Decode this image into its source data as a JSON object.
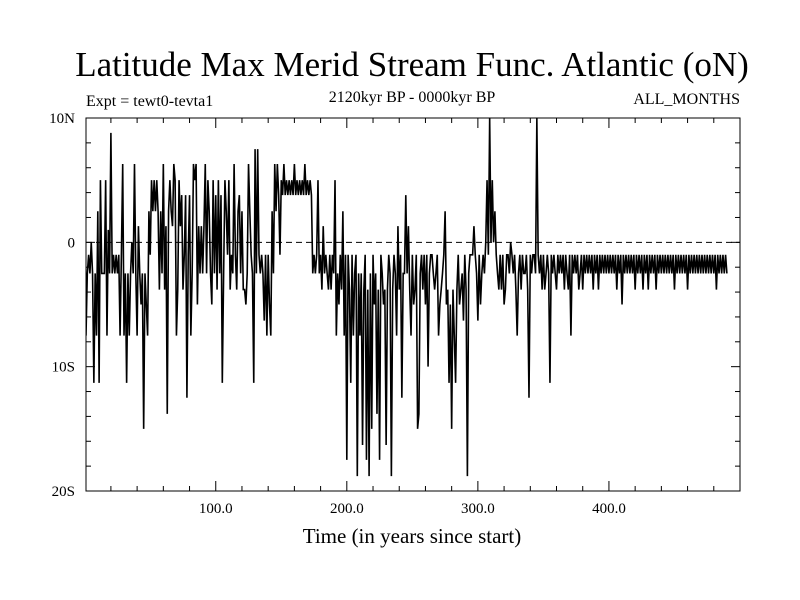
{
  "chart_data": {
    "type": "line",
    "title": "Latitude Max Merid Stream Func. Atlantic (oN)",
    "subtitle": "2120kyr BP - 0000kyr BP",
    "experiment_label": "Expt = tewt0-tevta1",
    "season_label": "ALL_MONTHS",
    "xlabel": "Time (in years since start)",
    "ylabel": "",
    "xlim": [
      1,
      500
    ],
    "ylim": [
      -20,
      10
    ],
    "x_ticks": [
      {
        "value": 100,
        "label": "100.0"
      },
      {
        "value": 200,
        "label": "200.0"
      },
      {
        "value": 300,
        "label": "300.0"
      },
      {
        "value": 400,
        "label": "400.0"
      }
    ],
    "y_ticks": [
      {
        "value": 10,
        "label": "10N"
      },
      {
        "value": 0,
        "label": "0"
      },
      {
        "value": -10,
        "label": "10S"
      },
      {
        "value": -20,
        "label": "20S"
      }
    ],
    "zero_line": true,
    "grid": false,
    "series": [
      {
        "name": "tewt0-tevta1",
        "x_start": 1,
        "x_step": 1,
        "values": [
          -7.5,
          -2.5,
          -1,
          -2.5,
          0,
          -2.5,
          -11.3,
          -2.5,
          -7.5,
          2.5,
          -11.3,
          5,
          -2.5,
          -2.5,
          -2.5,
          5,
          -7.5,
          1,
          -2.5,
          8.8,
          -2.5,
          -1,
          -2.5,
          -1,
          -2.5,
          -1,
          -7.5,
          -1,
          6.3,
          -7.5,
          -2.5,
          -11.3,
          -2.5,
          -7.5,
          -2.5,
          0,
          -2.5,
          6.3,
          -2.5,
          -7.5,
          1.3,
          -2.5,
          -5,
          -2.5,
          -15,
          -2.5,
          -5,
          -7.5,
          2.5,
          -1,
          5,
          2.5,
          5,
          2.5,
          5,
          2.5,
          -3.8,
          2.5,
          -2.5,
          6.3,
          -3.8,
          1.3,
          -13.8,
          2.5,
          5,
          2.5,
          1.3,
          6.3,
          5,
          -7.5,
          -3.8,
          5,
          1.3,
          3.8,
          -3.8,
          -1,
          3.8,
          -12.5,
          -1,
          3.8,
          -7.5,
          -2.5,
          6.3,
          5,
          6.3,
          -5,
          1.3,
          -2.5,
          1.3,
          -2.5,
          1.3,
          6.3,
          -2.5,
          5,
          2.5,
          -2.5,
          -5,
          5,
          -2.5,
          3.8,
          -3.8,
          5,
          -2.5,
          3.8,
          -11.3,
          -2.5,
          5,
          2.5,
          -1,
          5,
          -3.8,
          -1,
          -2.5,
          6.3,
          -1,
          -3.8,
          2.5,
          3.8,
          -2.5,
          2.5,
          -3.8,
          -3.8,
          -5,
          -2.5,
          6.3,
          2.5,
          -1,
          -2.5,
          -11.3,
          7.5,
          -2.5,
          7.5,
          -1,
          -2.5,
          -1,
          -2.5,
          -6.3,
          -1,
          -7.5,
          -1,
          -5,
          -7.5,
          2.5,
          -2.5,
          6.3,
          2.5,
          6.3,
          3.8,
          -1,
          5,
          3.8,
          6.3,
          3.8,
          5,
          3.8,
          5,
          3.8,
          5,
          3.8,
          6.3,
          3.8,
          5,
          3.8,
          5,
          3.8,
          5,
          3.8,
          6.3,
          3.8,
          5,
          3.8,
          5,
          3.8,
          -2.5,
          -1,
          -2.5,
          -1,
          5,
          -2.5,
          -1,
          -3.8,
          1.3,
          -2.5,
          -1,
          -2.5,
          -3.8,
          -1,
          -3.8,
          -1,
          -2.5,
          5,
          -7.5,
          -2.5,
          -5,
          -1,
          -3.8,
          2.5,
          -7.5,
          -1,
          -17.5,
          -1,
          -3.8,
          -11.3,
          -1,
          -7.5,
          -2.5,
          -1,
          -18.8,
          -2.5,
          -7.5,
          -2.5,
          -16.3,
          -3.8,
          -1,
          -17.5,
          -3.8,
          -18.8,
          -2.5,
          -15,
          -1,
          -5,
          -2.5,
          -13.8,
          -3.8,
          -17.5,
          -1,
          -2.5,
          -5,
          -3.8,
          -16.3,
          -3.8,
          -1,
          -2.5,
          -18.8,
          -3.8,
          -1,
          -2.5,
          -7.5,
          1.3,
          -3.8,
          -1,
          -12.5,
          -2.5,
          -2.5,
          3.8,
          -2.5,
          1.3,
          -3.8,
          -7.5,
          -1,
          -5,
          -3.8,
          -1,
          -15,
          -13.8,
          -2.5,
          -1,
          -3.8,
          -1,
          -5,
          -1,
          -10,
          -2.5,
          -1,
          -1,
          -2.5,
          -3.8,
          -2.5,
          -1,
          -7.5,
          -5,
          -3.8,
          -2.5,
          -1,
          2.5,
          -5,
          -3.8,
          -11.3,
          -5,
          -15,
          -3.8,
          -7.5,
          -11.3,
          -3.8,
          -1,
          -5,
          -3.8,
          -2.5,
          -6.3,
          -1,
          -3.8,
          -18.8,
          -2.5,
          -1,
          -1,
          -1,
          1.3,
          -1,
          -2.5,
          -6.3,
          -1,
          -5,
          -2.5,
          -1,
          -2.5,
          0,
          5,
          -1,
          10,
          0,
          5,
          0,
          2.5,
          -1,
          -2.5,
          -3.8,
          -1,
          -3.8,
          -1,
          -5,
          -3.8,
          -1,
          -1,
          -2.5,
          0,
          -1,
          -2.5,
          -1,
          -3.8,
          -7.5,
          -2.5,
          -1,
          -3.8,
          -1,
          -2.5,
          -2.5,
          -1,
          -3.8,
          -12.5,
          -1,
          -2.5,
          -1,
          -1,
          -2.5,
          10,
          -1,
          -2.5,
          -1,
          -3.8,
          -1,
          -3.8,
          -2.5,
          -1,
          -2.5,
          -11.3,
          -1,
          -2.5,
          -1,
          -2.5,
          -3.8,
          -1,
          -2.5,
          -1,
          -2.5,
          -1,
          -3.8,
          -1,
          -2.5,
          -3.8,
          -1,
          -7.5,
          -1,
          -2.5,
          -1,
          -2.5,
          -1,
          -3.8,
          -2.5,
          -1,
          -3.8,
          -1,
          -2.5,
          -1,
          -2.5,
          -1,
          -2.5,
          -1,
          -3.8,
          -1,
          -2.5,
          -1,
          -3.8,
          -1,
          -2.5,
          -1,
          -2.5,
          -1,
          -2.5,
          -1,
          -2.5,
          -1,
          -2.5,
          -1,
          -2.5,
          -1,
          -3.8,
          -1,
          -2.5,
          -1,
          -5,
          -1,
          -2.5,
          -1,
          -2.5,
          -1,
          -2.5,
          -1,
          -2.5,
          -1,
          -3.8,
          -1,
          -2.5,
          -1,
          -2.5,
          -1,
          -3.8,
          -1,
          -2.5,
          -1,
          -3.8,
          -1,
          -2.5,
          -1,
          -2.5,
          -1,
          -3.8,
          -1,
          -2.5,
          -1,
          -2.5,
          -1,
          -2.5,
          -1,
          -2.5,
          -1,
          -2.5,
          -1,
          -2.5,
          -1,
          -3.8,
          -1,
          -2.5,
          -1,
          -2.5,
          -1,
          -2.5,
          -1,
          -2.5,
          -1,
          -3.8,
          -1,
          -2.5,
          -1,
          -2.5,
          -1,
          -2.5,
          -1,
          -2.5,
          -1,
          -2.5,
          -1,
          -2.5,
          -1,
          -2.5,
          -1,
          -2.5,
          -1,
          -2.5,
          -1,
          -2.5,
          -1,
          -3.8,
          -1,
          -2.5,
          -1,
          -2.5,
          -1,
          -2.5,
          -1,
          -2.5
        ]
      }
    ]
  }
}
